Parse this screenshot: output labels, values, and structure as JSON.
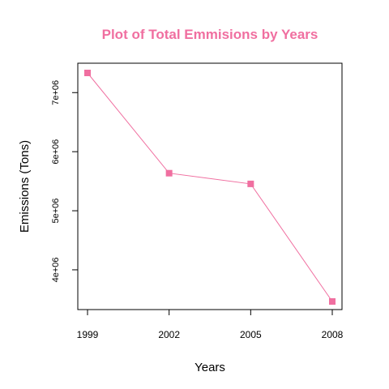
{
  "chart_data": {
    "type": "line",
    "title": "Plot of Total Emmisions by Years",
    "xlabel": "Years",
    "ylabel": "Emissions (Tons)",
    "x": [
      1999,
      2002,
      2005,
      2008
    ],
    "x_tick_labels": [
      "1999",
      "2002",
      "2005",
      "2008"
    ],
    "y_ticks": [
      4000000,
      5000000,
      6000000,
      7000000
    ],
    "y_tick_labels": [
      "4e+06",
      "5e+06",
      "6e+06",
      "7e+06"
    ],
    "series": [
      {
        "values": [
          7332967,
          5635780,
          5454703,
          3464206
        ]
      }
    ],
    "xlim": [
      1999,
      2008
    ],
    "ylim": [
      3464206,
      7332967
    ],
    "grid": false,
    "marker": "square",
    "colors": {
      "title": "#f06fa0",
      "series": "#f06fa0",
      "axis": "#000000"
    }
  }
}
